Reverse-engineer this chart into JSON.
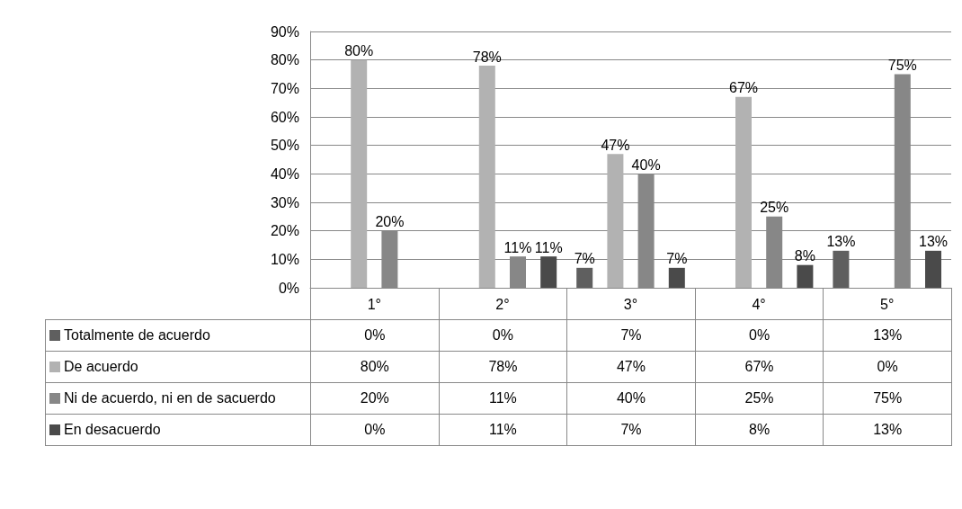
{
  "chart_data": {
    "type": "bar",
    "categories": [
      "1°",
      "2°",
      "3°",
      "4°",
      "5°"
    ],
    "series": [
      {
        "name": "Totalmente de acuerdo",
        "color": "#5f5f5f",
        "values": [
          0,
          0,
          7,
          0,
          13
        ],
        "value_labels": [
          "0%",
          "0%",
          "7%",
          "0%",
          "13%"
        ]
      },
      {
        "name": "De acuerdo",
        "color": "#b2b2b2",
        "values": [
          80,
          78,
          47,
          67,
          0
        ],
        "value_labels": [
          "80%",
          "78%",
          "47%",
          "67%",
          "0%"
        ]
      },
      {
        "name": "Ni de acuerdo, ni en de sacuerdo",
        "color": "#878787",
        "values": [
          20,
          11,
          40,
          25,
          75
        ],
        "value_labels": [
          "20%",
          "11%",
          "40%",
          "25%",
          "75%"
        ]
      },
      {
        "name": "En desacuerdo",
        "color": "#4a4a4a",
        "values": [
          0,
          11,
          7,
          8,
          13
        ],
        "value_labels": [
          "0%",
          "11%",
          "7%",
          "8%",
          "13%"
        ]
      }
    ],
    "ylim": [
      0,
      90
    ],
    "yticks": [
      {
        "value": 0,
        "label": "0%"
      },
      {
        "value": 10,
        "label": "10%"
      },
      {
        "value": 20,
        "label": "20%"
      },
      {
        "value": 30,
        "label": "30%"
      },
      {
        "value": 40,
        "label": "40%"
      },
      {
        "value": 50,
        "label": "50%"
      },
      {
        "value": 60,
        "label": "60%"
      },
      {
        "value": 70,
        "label": "70%"
      },
      {
        "value": 80,
        "label": "80%"
      },
      {
        "value": 90,
        "label": "90%"
      }
    ],
    "grid": "y",
    "legend": "bottom",
    "data_labels": true
  }
}
